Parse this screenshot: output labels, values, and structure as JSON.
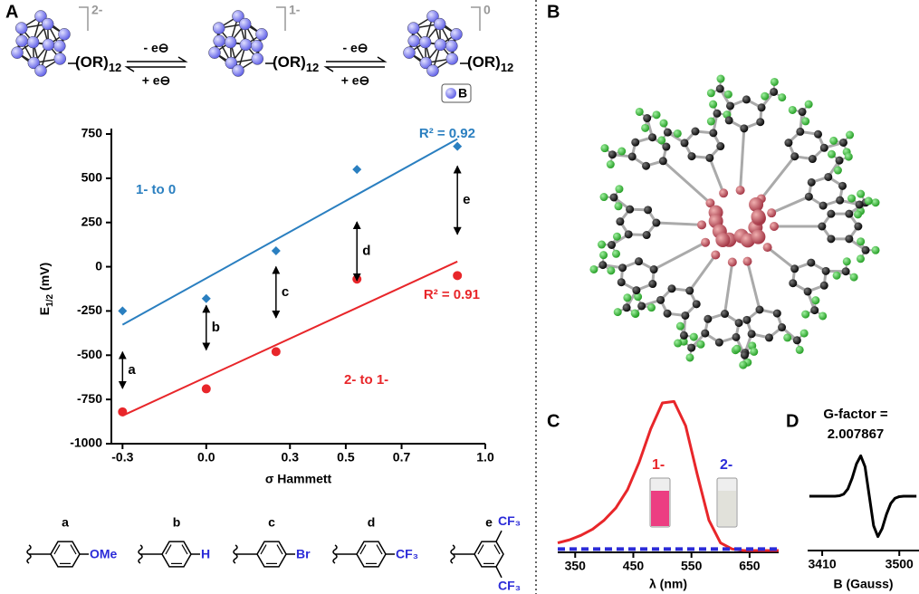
{
  "panel_labels": [
    "A",
    "B",
    "C",
    "D"
  ],
  "scheme": {
    "charges": [
      "2-",
      "1-",
      "0"
    ],
    "ligand": "(OR)",
    "ligand_count": "12",
    "oxidation": "- e⊖",
    "reduction": "+ e⊖",
    "atom_legend": "B"
  },
  "substituents": [
    {
      "letter": "a",
      "groups": [
        "OMe"
      ]
    },
    {
      "letter": "b",
      "groups": [
        "H"
      ]
    },
    {
      "letter": "c",
      "groups": [
        "Br"
      ]
    },
    {
      "letter": "d",
      "groups": [
        "CF₃"
      ]
    },
    {
      "letter": "e",
      "groups": [
        "CF₃",
        "CF₃"
      ]
    }
  ],
  "chart_data": [
    {
      "type": "scatter",
      "y_label": {
        "main": "E",
        "sub": "1/2",
        "unit": "(mV)"
      },
      "x_label": "σ Hammett",
      "x": [
        -0.3,
        0.0,
        0.25,
        0.54,
        0.9
      ],
      "series": [
        {
          "name": "1- to 0",
          "color": "#2a7fc0",
          "marker": "diamond",
          "values": [
            -250,
            -180,
            90,
            550,
            680
          ],
          "r2_label": "R² = 0.92"
        },
        {
          "name": "2- to 1-",
          "color": "#e8262a",
          "marker": "circle",
          "values": [
            -820,
            -690,
            -480,
            -70,
            -50
          ],
          "r2_label": "R² = 0.91"
        }
      ],
      "pair_labels": [
        "a",
        "b",
        "c",
        "d",
        "e"
      ],
      "trendline": true,
      "xlim": [
        -0.34,
        1.0
      ],
      "xticks": [
        -0.3,
        {
          "value": 0,
          "label": "0.0"
        },
        0.3,
        0.5,
        0.7,
        {
          "value": 1,
          "label": "1.0"
        }
      ],
      "ylim": [
        -1000,
        750
      ],
      "yticks": [
        -1000,
        -750,
        -500,
        -250,
        0,
        250,
        500,
        750
      ]
    },
    {
      "type": "line",
      "x_label": "λ (nm)",
      "x": [
        320,
        340,
        360,
        380,
        400,
        420,
        440,
        460,
        480,
        500,
        520,
        540,
        560,
        580,
        600,
        620,
        640,
        660,
        680,
        700
      ],
      "series": [
        {
          "name": "1-",
          "color": "#e8262a",
          "dash": false,
          "values": [
            0.05,
            0.07,
            0.1,
            0.14,
            0.2,
            0.28,
            0.4,
            0.58,
            0.8,
            0.97,
            0.98,
            0.82,
            0.5,
            0.2,
            0.05,
            0.01,
            0,
            0,
            0,
            0
          ]
        },
        {
          "name": "2-",
          "color": "#2b2bd8",
          "dash": true,
          "values": [
            0.01,
            0.01,
            0.01,
            0.01,
            0.01,
            0.01,
            0.01,
            0.01,
            0.01,
            0.01,
            0.01,
            0.01,
            0.01,
            0.01,
            0.01,
            0.01,
            0.01,
            0.01,
            0.01,
            0.01
          ]
        }
      ],
      "xlim": [
        320,
        700
      ],
      "xticks": [
        350,
        450,
        550,
        650
      ],
      "ylim": [
        0,
        1
      ]
    },
    {
      "type": "line",
      "x_label": "B (Gauss)",
      "annotation": [
        "G-factor =",
        "2.007867"
      ],
      "x": [
        3395,
        3400,
        3405,
        3410,
        3415,
        3420,
        3425,
        3430,
        3435,
        3440,
        3445,
        3450,
        3455,
        3460,
        3465,
        3470,
        3475,
        3480,
        3485,
        3490,
        3495,
        3500,
        3505,
        3510,
        3515,
        3520
      ],
      "series": [
        {
          "color": "#000000",
          "dash": false,
          "values": [
            0,
            0,
            0,
            0,
            0,
            0,
            0,
            0.01,
            0.05,
            0.18,
            0.45,
            0.8,
            1,
            0.73,
            0,
            -0.73,
            -1,
            -0.8,
            -0.45,
            -0.18,
            -0.05,
            -0.01,
            0,
            0,
            0,
            0
          ]
        }
      ],
      "xlim": [
        3393,
        3523
      ],
      "xticks": [
        3410,
        3500
      ],
      "ylim": [
        -1.3,
        1.3
      ]
    }
  ]
}
